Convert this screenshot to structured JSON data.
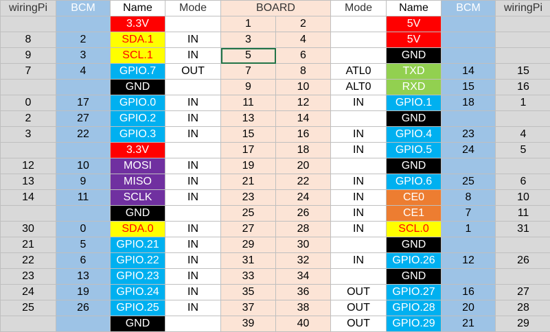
{
  "colors": {
    "wiringpi_column": "#d9d9d9",
    "bcm_column": "#9dc3e6",
    "board_column": "#fce4d6",
    "power_3v3": "#ff0000",
    "power_5v": "#ff0000",
    "ground": "#000000",
    "i2c": "#ffff00",
    "i2c_text": "#ff0000",
    "gpio": "#00b0f0",
    "uart": "#92d050",
    "spi": "#7030a0",
    "spi_ce": "#ed7d31",
    "selection_outline": "#217346"
  },
  "header": {
    "left_wiringpi": "wiringPi",
    "left_bcm": "BCM",
    "left_name": "Name",
    "left_mode": "Mode",
    "board": "BOARD",
    "right_mode": "Mode",
    "right_name": "Name",
    "right_bcm": "BCM",
    "right_wiringpi": "wiringPi"
  },
  "selected_cell": {
    "row": 2,
    "side": "left",
    "column": "board"
  },
  "rows": [
    {
      "left": {
        "wpi": "",
        "bcm": "",
        "name": "3.3V",
        "type": "power33",
        "mode": ""
      },
      "pins": [
        "1",
        "2"
      ],
      "right": {
        "mode": "",
        "name": "5V",
        "type": "power5",
        "bcm": "",
        "wpi": ""
      }
    },
    {
      "left": {
        "wpi": "8",
        "bcm": "2",
        "name": "SDA.1",
        "type": "i2c",
        "mode": "IN"
      },
      "pins": [
        "3",
        "4"
      ],
      "right": {
        "mode": "",
        "name": "5V",
        "type": "power5",
        "bcm": "",
        "wpi": ""
      }
    },
    {
      "left": {
        "wpi": "9",
        "bcm": "3",
        "name": "SCL.1",
        "type": "i2c",
        "mode": "IN"
      },
      "pins": [
        "5",
        "6"
      ],
      "right": {
        "mode": "",
        "name": "GND",
        "type": "ground",
        "bcm": "",
        "wpi": ""
      }
    },
    {
      "left": {
        "wpi": "7",
        "bcm": "4",
        "name": "GPIO.7",
        "type": "gpio",
        "mode": "OUT"
      },
      "pins": [
        "7",
        "8"
      ],
      "right": {
        "mode": "ATL0",
        "name": "TXD",
        "type": "uart",
        "bcm": "14",
        "wpi": "15"
      }
    },
    {
      "left": {
        "wpi": "",
        "bcm": "",
        "name": "GND",
        "type": "ground",
        "mode": ""
      },
      "pins": [
        "9",
        "10"
      ],
      "right": {
        "mode": "ALT0",
        "name": "RXD",
        "type": "uart",
        "bcm": "15",
        "wpi": "16"
      }
    },
    {
      "left": {
        "wpi": "0",
        "bcm": "17",
        "name": "GPIO.0",
        "type": "gpio",
        "mode": "IN"
      },
      "pins": [
        "11",
        "12"
      ],
      "right": {
        "mode": "IN",
        "name": "GPIO.1",
        "type": "gpio",
        "bcm": "18",
        "wpi": "1"
      }
    },
    {
      "left": {
        "wpi": "2",
        "bcm": "27",
        "name": "GPIO.2",
        "type": "gpio",
        "mode": "IN"
      },
      "pins": [
        "13",
        "14"
      ],
      "right": {
        "mode": "",
        "name": "GND",
        "type": "ground",
        "bcm": "",
        "wpi": ""
      }
    },
    {
      "left": {
        "wpi": "3",
        "bcm": "22",
        "name": "GPIO.3",
        "type": "gpio",
        "mode": "IN"
      },
      "pins": [
        "15",
        "16"
      ],
      "right": {
        "mode": "IN",
        "name": "GPIO.4",
        "type": "gpio",
        "bcm": "23",
        "wpi": "4"
      }
    },
    {
      "left": {
        "wpi": "",
        "bcm": "",
        "name": "3.3V",
        "type": "power33",
        "mode": ""
      },
      "pins": [
        "17",
        "18"
      ],
      "right": {
        "mode": "IN",
        "name": "GPIO.5",
        "type": "gpio",
        "bcm": "24",
        "wpi": "5"
      }
    },
    {
      "left": {
        "wpi": "12",
        "bcm": "10",
        "name": "MOSI",
        "type": "spi",
        "mode": "IN"
      },
      "pins": [
        "19",
        "20"
      ],
      "right": {
        "mode": "",
        "name": "GND",
        "type": "ground",
        "bcm": "",
        "wpi": ""
      }
    },
    {
      "left": {
        "wpi": "13",
        "bcm": "9",
        "name": "MISO",
        "type": "spi",
        "mode": "IN"
      },
      "pins": [
        "21",
        "22"
      ],
      "right": {
        "mode": "IN",
        "name": "GPIO.6",
        "type": "gpio",
        "bcm": "25",
        "wpi": "6"
      }
    },
    {
      "left": {
        "wpi": "14",
        "bcm": "11",
        "name": "SCLK",
        "type": "spi",
        "mode": "IN"
      },
      "pins": [
        "23",
        "24"
      ],
      "right": {
        "mode": "IN",
        "name": "CE0",
        "type": "spice",
        "bcm": "8",
        "wpi": "10"
      }
    },
    {
      "left": {
        "wpi": "",
        "bcm": "",
        "name": "GND",
        "type": "ground",
        "mode": ""
      },
      "pins": [
        "25",
        "26"
      ],
      "right": {
        "mode": "IN",
        "name": "CE1",
        "type": "spice",
        "bcm": "7",
        "wpi": "11"
      }
    },
    {
      "left": {
        "wpi": "30",
        "bcm": "0",
        "name": "SDA.0",
        "type": "i2c",
        "mode": "IN"
      },
      "pins": [
        "27",
        "28"
      ],
      "right": {
        "mode": "IN",
        "name": "SCL.0",
        "type": "i2c",
        "bcm": "1",
        "wpi": "31"
      }
    },
    {
      "left": {
        "wpi": "21",
        "bcm": "5",
        "name": "GPIO.21",
        "type": "gpio",
        "mode": "IN"
      },
      "pins": [
        "29",
        "30"
      ],
      "right": {
        "mode": "",
        "name": "GND",
        "type": "ground",
        "bcm": "",
        "wpi": ""
      }
    },
    {
      "left": {
        "wpi": "22",
        "bcm": "6",
        "name": "GPIO.22",
        "type": "gpio",
        "mode": "IN"
      },
      "pins": [
        "31",
        "32"
      ],
      "right": {
        "mode": "IN",
        "name": "GPIO.26",
        "type": "gpio",
        "bcm": "12",
        "wpi": "26"
      }
    },
    {
      "left": {
        "wpi": "23",
        "bcm": "13",
        "name": "GPIO.23",
        "type": "gpio",
        "mode": "IN"
      },
      "pins": [
        "33",
        "34"
      ],
      "right": {
        "mode": "",
        "name": "GND",
        "type": "ground",
        "bcm": "",
        "wpi": ""
      }
    },
    {
      "left": {
        "wpi": "24",
        "bcm": "19",
        "name": "GPIO.24",
        "type": "gpio",
        "mode": "IN"
      },
      "pins": [
        "35",
        "36"
      ],
      "right": {
        "mode": "OUT",
        "name": "GPIO.27",
        "type": "gpio",
        "bcm": "16",
        "wpi": "27"
      }
    },
    {
      "left": {
        "wpi": "25",
        "bcm": "26",
        "name": "GPIO.25",
        "type": "gpio",
        "mode": "IN"
      },
      "pins": [
        "37",
        "38"
      ],
      "right": {
        "mode": "OUT",
        "name": "GPIO.28",
        "type": "gpio",
        "bcm": "20",
        "wpi": "28"
      }
    },
    {
      "left": {
        "wpi": "",
        "bcm": "",
        "name": "GND",
        "type": "ground",
        "mode": ""
      },
      "pins": [
        "39",
        "40"
      ],
      "right": {
        "mode": "OUT",
        "name": "GPIO.29",
        "type": "gpio",
        "bcm": "21",
        "wpi": "29"
      }
    }
  ]
}
